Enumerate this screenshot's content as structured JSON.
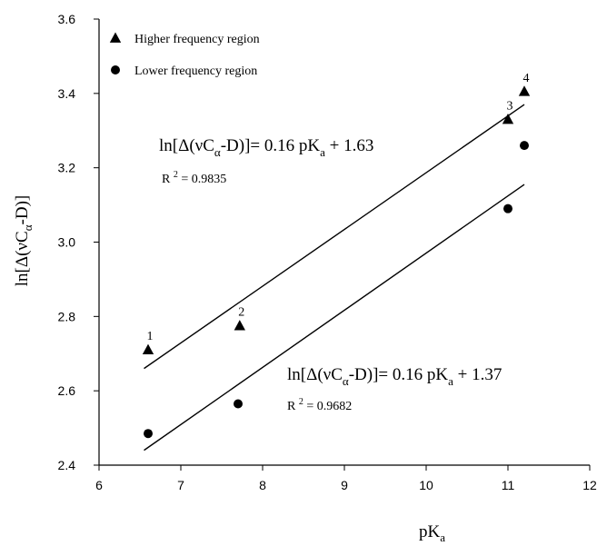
{
  "chart_data": {
    "type": "scatter",
    "title": "",
    "xlabel": {
      "base": "pK",
      "sub": "a"
    },
    "ylabel": {
      "pre": "ln[Δ(νC",
      "sub": "α",
      "post": "-D)]"
    },
    "xlim": [
      6,
      12
    ],
    "ylim": [
      2.4,
      3.6
    ],
    "xticks": [
      "6",
      "7",
      "8",
      "9",
      "10",
      "11",
      "12"
    ],
    "yticks": [
      "2.4",
      "2.6",
      "2.8",
      "3.0",
      "3.2",
      "3.4",
      "3.6"
    ],
    "legend_position": "top-left",
    "series": [
      {
        "name": "Higher frequency region",
        "marker": "triangle",
        "color": "#000000",
        "points": [
          {
            "x": 6.6,
            "y": 2.71,
            "label": "1"
          },
          {
            "x": 7.72,
            "y": 2.775,
            "label": "2"
          },
          {
            "x": 11.0,
            "y": 3.33,
            "label": "3"
          },
          {
            "x": 11.2,
            "y": 3.405,
            "label": "4"
          }
        ],
        "fit": {
          "x": [
            6.55,
            11.2
          ],
          "y": [
            2.66,
            3.37
          ]
        }
      },
      {
        "name": "Lower frequency region",
        "marker": "circle",
        "color": "#000000",
        "points": [
          {
            "x": 6.6,
            "y": 2.485
          },
          {
            "x": 7.7,
            "y": 2.565
          },
          {
            "x": 11.0,
            "y": 3.09
          },
          {
            "x": 11.2,
            "y": 3.26
          }
        ],
        "fit": {
          "x": [
            6.55,
            11.2
          ],
          "y": [
            2.44,
            3.155
          ]
        }
      }
    ],
    "annotations": [
      {
        "name": "upper-fit-equation",
        "eq_pre": "ln[Δ(νC",
        "eq_sub1": "α",
        "eq_mid": "-D)]= 0.16 pK",
        "eq_sub2": "a",
        "eq_post": " + 1.63",
        "r2_pre": "R ",
        "r2_sup": "2",
        "r2_post": " = 0.9835"
      },
      {
        "name": "lower-fit-equation",
        "eq_pre": "ln[Δ(νC",
        "eq_sub1": "α",
        "eq_mid": "-D)]= 0.16 pK",
        "eq_sub2": "a",
        "eq_post": " + 1.37",
        "r2_pre": "R ",
        "r2_sup": "2",
        "r2_post": " = 0.9682"
      }
    ]
  }
}
